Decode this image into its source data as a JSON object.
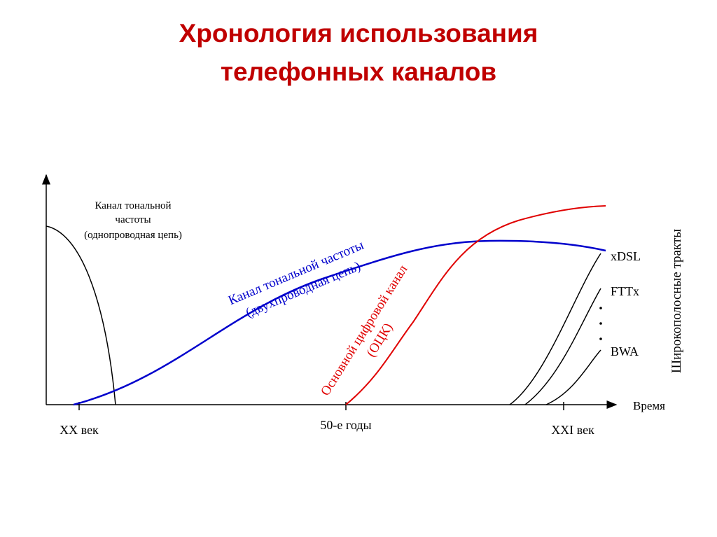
{
  "title": [
    "Хронология использования",
    "телефонных каналов"
  ],
  "labels": {
    "single_wire": [
      "Канал тональной",
      "частоты",
      "(однопроводная цепь)"
    ],
    "two_wire": [
      "Канал тональной частоты",
      "(двухпроводная цепь)"
    ],
    "digital": [
      "Основной цифровой канал",
      "(ОЦК)"
    ],
    "xdsl": "xDSL",
    "fttx": "FTTx",
    "bwa": "BWA",
    "broadband": "Широкополосные тракты",
    "time": "Время"
  },
  "x_axis": [
    "XX век",
    "50-е годы",
    "XXI век"
  ]
}
